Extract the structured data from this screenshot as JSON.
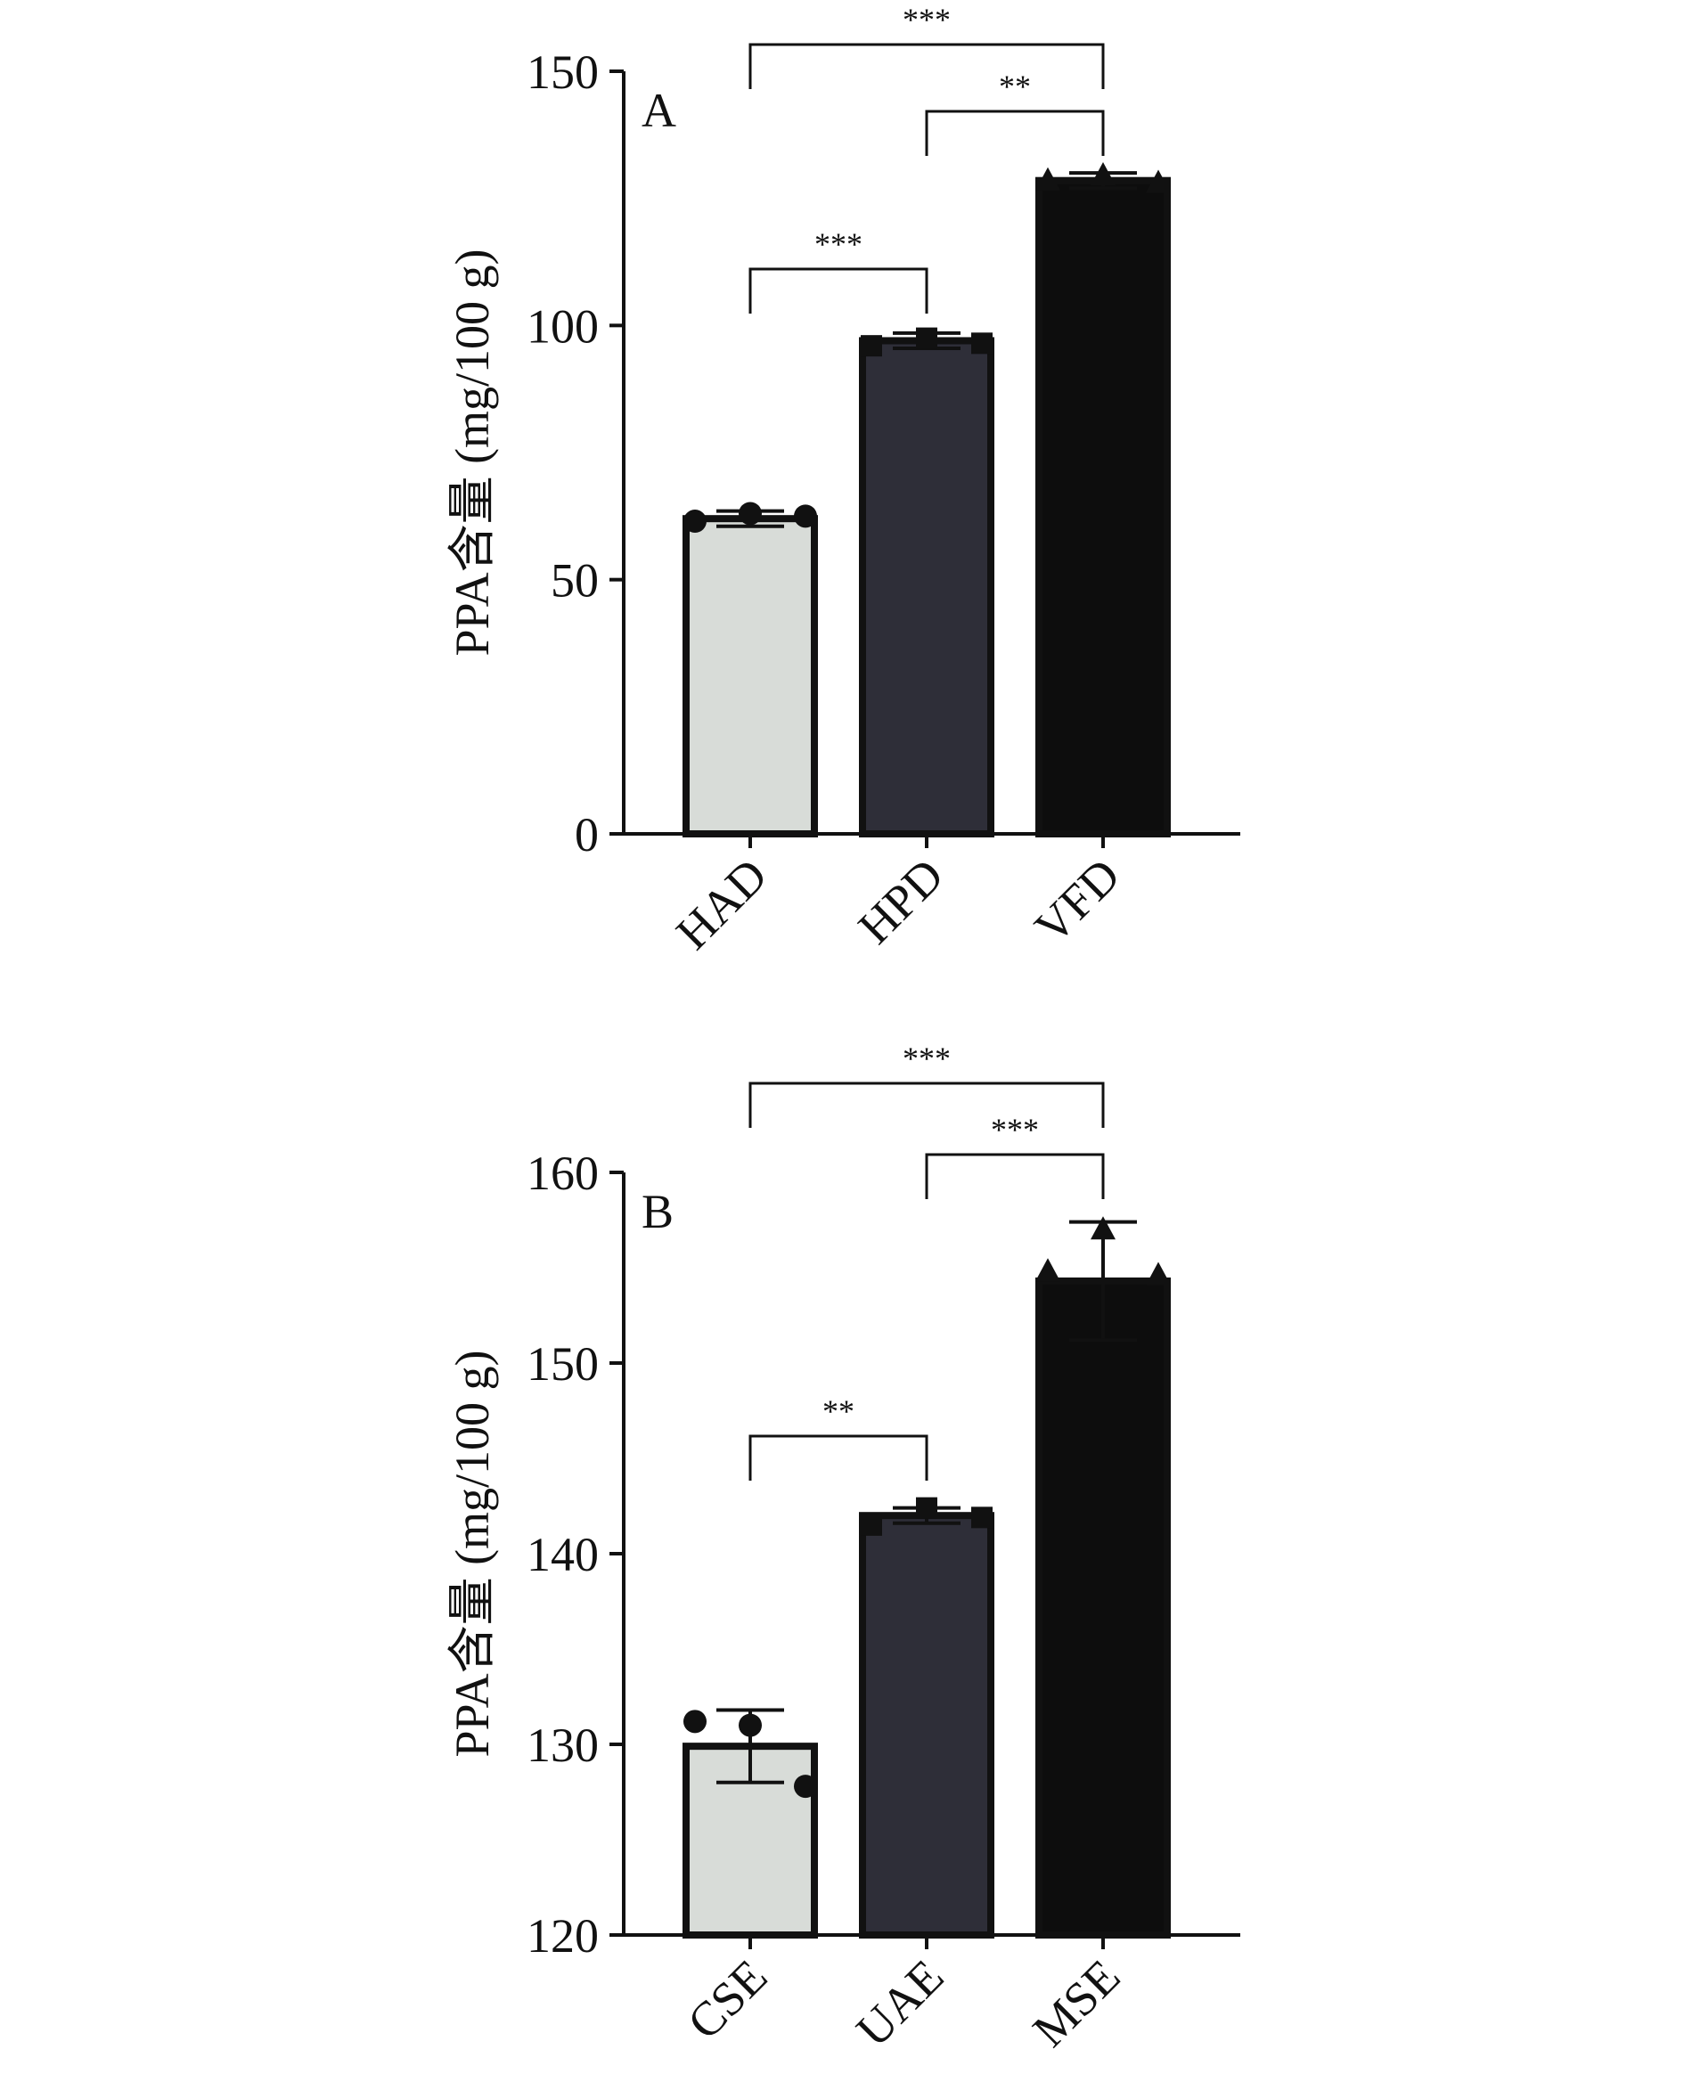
{
  "chart_data": [
    {
      "type": "bar",
      "panel_label": "A",
      "ylabel": "PPA含量 (mg/100 g)",
      "ylim": [
        0,
        150
      ],
      "yticks": [
        0,
        50,
        100,
        150
      ],
      "categories": [
        "HAD",
        "HPD",
        "VFD"
      ],
      "values": [
        62.0,
        97.0,
        128.5
      ],
      "errors": [
        1.5,
        1.5,
        1.5
      ],
      "bar_colors": [
        "#d8dcd8",
        "#2e2e38",
        "#0d0d0d"
      ],
      "markers": [
        "circle",
        "square",
        "triangle"
      ],
      "points": [
        [
          61.5,
          63.0,
          62.5
        ],
        [
          96.0,
          97.5,
          96.5
        ],
        [
          128.5,
          129.5,
          128.0
        ]
      ],
      "significance": [
        {
          "from": "HAD",
          "to": "HPD",
          "label": "***"
        },
        {
          "from": "HPD",
          "to": "VFD",
          "label": "**"
        },
        {
          "from": "HAD",
          "to": "VFD",
          "label": "***"
        }
      ]
    },
    {
      "type": "bar",
      "panel_label": "B",
      "ylabel": "PPA含量 (mg/100 g)",
      "ylim": [
        120,
        160
      ],
      "yticks": [
        120,
        130,
        140,
        150,
        160
      ],
      "categories": [
        "CSE",
        "UAE",
        "MSE"
      ],
      "values": [
        129.9,
        142.0,
        154.3
      ],
      "errors": [
        1.9,
        0.4,
        3.1
      ],
      "bar_colors": [
        "#d8dcd8",
        "#2e2e38",
        "#0d0d0d"
      ],
      "markers": [
        "circle",
        "square",
        "triangle"
      ],
      "points": [
        [
          131.2,
          131.0,
          127.8
        ],
        [
          141.5,
          142.4,
          141.9
        ],
        [
          154.8,
          157.0,
          154.6
        ]
      ],
      "significance": [
        {
          "from": "CSE",
          "to": "UAE",
          "label": "**"
        },
        {
          "from": "UAE",
          "to": "MSE",
          "label": "***"
        },
        {
          "from": "CSE",
          "to": "MSE",
          "label": "***"
        }
      ]
    }
  ]
}
